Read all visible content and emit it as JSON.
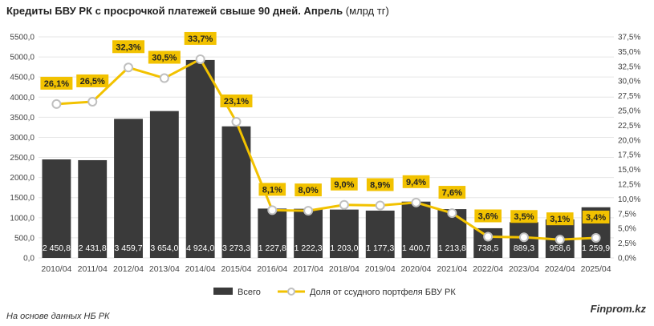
{
  "title": "Кредиты БВУ РК с просрочкой платежей свыше 90 дней. Апрель",
  "title_unit": "(млрд тг)",
  "source": "На основе данных НБ РК",
  "brand": "Finprom.kz",
  "colors": {
    "bar": "#3a3a3a",
    "line": "#f2c200",
    "label_bg": "#f2c200",
    "grid": "#e6e6e6"
  },
  "chart_data": {
    "type": "bar+line",
    "categories": [
      "2010/04",
      "2011/04",
      "2012/04",
      "2013/04",
      "2014/04",
      "2015/04",
      "2016/04",
      "2017/04",
      "2018/04",
      "2019/04",
      "2020/04",
      "2021/04",
      "2022/04",
      "2023/04",
      "2024/04",
      "2025/04"
    ],
    "series": [
      {
        "name": "Всего",
        "type": "bar",
        "axis": "left",
        "values": [
          2450.8,
          2431.8,
          3459.7,
          3654.0,
          4924.0,
          3273.3,
          1227.8,
          1222.3,
          1203.0,
          1177.3,
          1400.7,
          1213.8,
          738.5,
          889.3,
          958.6,
          1259.9
        ],
        "labels": [
          "2 450,8",
          "2 431,8",
          "3 459,7",
          "3 654,0",
          "4 924,0",
          "3 273,3",
          "1 227,8",
          "1 222,3",
          "1 203,0",
          "1 177,3",
          "1 400,7",
          "1 213,8",
          "738,5",
          "889,3",
          "958,6",
          "1 259,9"
        ]
      },
      {
        "name": "Доля от ссудного портфеля БВУ РК",
        "type": "line",
        "axis": "right",
        "values": [
          26.1,
          26.5,
          32.3,
          30.5,
          33.7,
          23.1,
          8.1,
          8.0,
          9.0,
          8.9,
          9.4,
          7.6,
          3.6,
          3.5,
          3.1,
          3.4
        ],
        "labels": [
          "26,1%",
          "26,5%",
          "32,3%",
          "30,5%",
          "33,7%",
          "23,1%",
          "8,1%",
          "8,0%",
          "9,0%",
          "8,9%",
          "9,4%",
          "7,6%",
          "3,6%",
          "3,5%",
          "3,1%",
          "3,4%"
        ]
      }
    ],
    "y_left": {
      "min": 0,
      "max": 5500,
      "step": 500,
      "ticks": [
        "0,0",
        "500,0",
        "1000,0",
        "1500,0",
        "2000,0",
        "2500,0",
        "3000,0",
        "3500,0",
        "4000,0",
        "4500,0",
        "5000,0",
        "5500,0"
      ]
    },
    "y_right": {
      "min": 0,
      "max": 37.5,
      "step": 2.5,
      "ticks": [
        "0,0%",
        "2,5%",
        "5,0%",
        "7,5%",
        "10,0%",
        "12,5%",
        "15,0%",
        "17,5%",
        "20,0%",
        "22,5%",
        "25,0%",
        "27,5%",
        "30,0%",
        "32,5%",
        "35,0%",
        "37,5%"
      ]
    },
    "grid": true,
    "legend_position": "bottom"
  }
}
